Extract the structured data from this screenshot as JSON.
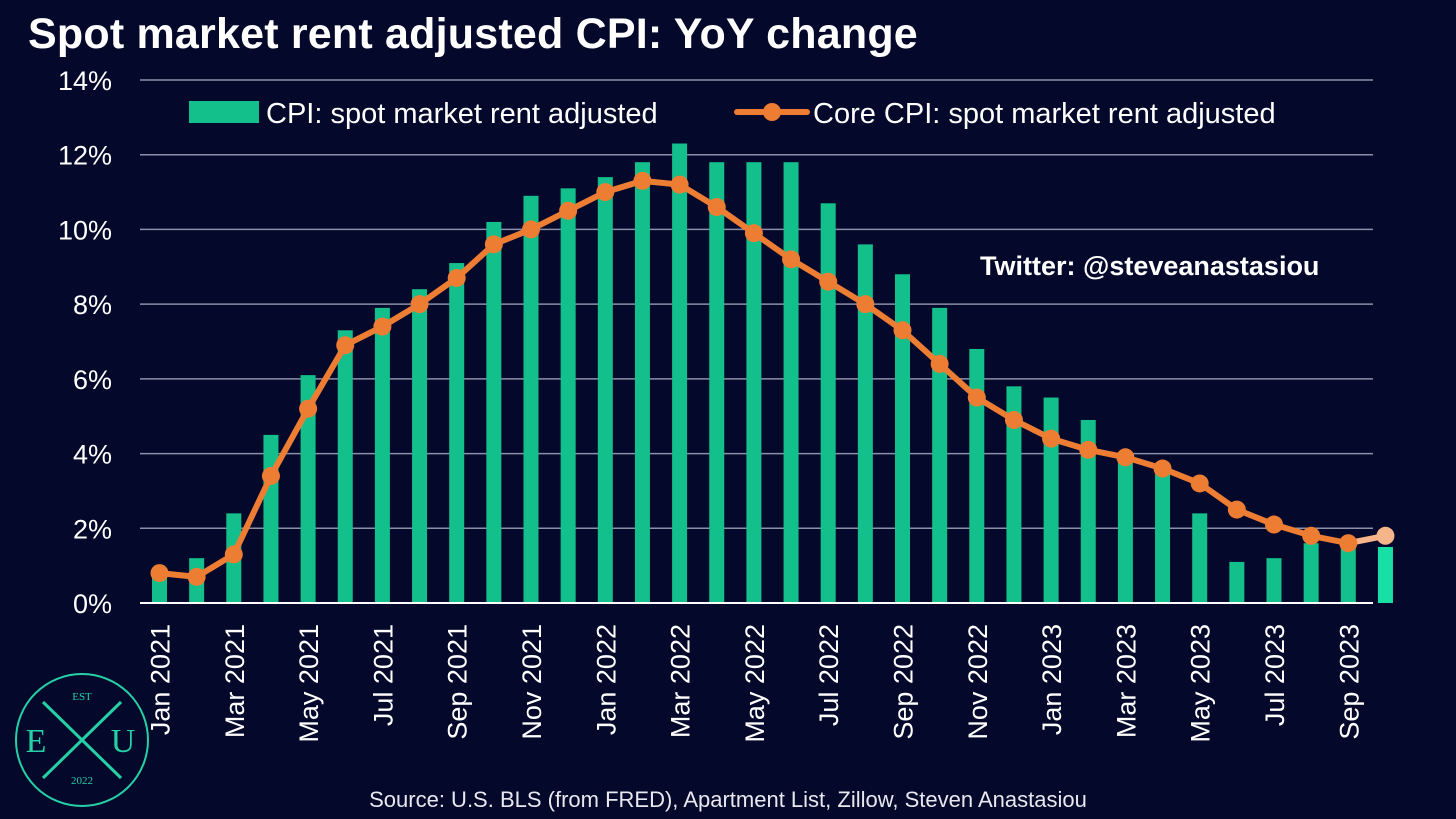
{
  "title": "Spot market rent adjusted CPI: YoY change",
  "watermark": "Twitter: @steveanastasiou",
  "source": "Source: U.S. BLS (from FRED), Apartment List, Zillow, Steven Anastasiou",
  "logo": {
    "top": "EST",
    "left": "E",
    "right": "U",
    "bottom": "2022"
  },
  "colors": {
    "background": "#04082b",
    "bar": "#13bf8b",
    "bar_highlight": "#18e0a4",
    "line": "#ee7d34",
    "line_highlight": "#f6b48a",
    "grid": "#8b8fa8"
  },
  "chart_data": {
    "type": "bar",
    "ylim": [
      0,
      14
    ],
    "yticks": [
      "0%",
      "2%",
      "4%",
      "6%",
      "8%",
      "10%",
      "12%",
      "14%"
    ],
    "grid": true,
    "legend_position": "top",
    "categories": [
      "Jan 2021",
      "Feb 2021",
      "Mar 2021",
      "Apr 2021",
      "May 2021",
      "Jun 2021",
      "Jul 2021",
      "Aug 2021",
      "Sep 2021",
      "Oct 2021",
      "Nov 2021",
      "Dec 2021",
      "Jan 2022",
      "Feb 2022",
      "Mar 2022",
      "Apr 2022",
      "May 2022",
      "Jun 2022",
      "Jul 2022",
      "Aug 2022",
      "Sep 2022",
      "Oct 2022",
      "Nov 2022",
      "Dec 2022",
      "Jan 2023",
      "Feb 2023",
      "Mar 2023",
      "Apr 2023",
      "May 2023",
      "Jun 2023",
      "Jul 2023",
      "Aug 2023",
      "Sep 2023",
      "Oct 2023"
    ],
    "xtick_labels": [
      "Jan 2021",
      "",
      "Mar 2021",
      "",
      "May 2021",
      "",
      "Jul 2021",
      "",
      "Sep 2021",
      "",
      "Nov 2021",
      "",
      "Jan 2022",
      "",
      "Mar 2022",
      "",
      "May 2022",
      "",
      "Jul 2022",
      "",
      "Sep 2022",
      "",
      "Nov 2022",
      "",
      "Jan 2023",
      "",
      "Mar 2023",
      "",
      "May 2023",
      "",
      "Jul 2023",
      "",
      "Sep 2023",
      ""
    ],
    "series": [
      {
        "name": "CPI: spot market rent adjusted",
        "kind": "bar",
        "values": [
          0.8,
          1.2,
          2.4,
          4.5,
          6.1,
          7.3,
          7.9,
          8.4,
          9.1,
          10.2,
          10.9,
          11.1,
          11.4,
          11.8,
          12.3,
          11.8,
          11.8,
          11.8,
          10.7,
          9.6,
          8.8,
          7.9,
          6.8,
          5.8,
          5.5,
          4.9,
          3.9,
          3.5,
          2.4,
          1.1,
          1.2,
          1.6,
          1.6,
          1.5
        ]
      },
      {
        "name": "Core CPI: spot market rent adjusted",
        "kind": "line",
        "values": [
          0.8,
          0.7,
          1.3,
          3.4,
          5.2,
          6.9,
          7.4,
          8.0,
          8.7,
          9.6,
          10.0,
          10.5,
          11.0,
          11.3,
          11.2,
          10.6,
          9.9,
          9.2,
          8.6,
          8.0,
          7.3,
          6.4,
          5.5,
          4.9,
          4.4,
          4.1,
          3.9,
          3.6,
          3.2,
          2.5,
          2.1,
          1.8,
          1.6,
          1.8
        ]
      }
    ]
  }
}
